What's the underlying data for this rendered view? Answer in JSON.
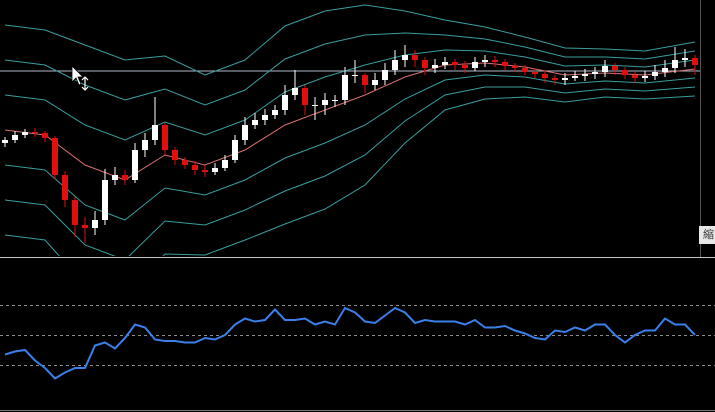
{
  "chart_data": [
    {
      "type": "candlestick",
      "x": [
        0,
        1,
        2,
        3,
        4,
        5,
        6,
        7,
        8,
        9,
        10,
        11,
        12,
        13,
        14,
        15,
        16,
        17,
        18,
        19,
        20,
        21,
        22,
        23,
        24,
        25,
        26,
        27,
        28,
        29,
        30,
        31,
        32,
        33,
        34,
        35,
        36,
        37,
        38,
        39,
        40,
        41,
        42,
        43,
        44,
        45,
        46,
        47,
        48,
        49,
        50,
        51,
        52,
        53,
        54,
        55,
        56,
        57,
        58,
        59,
        60,
        61,
        62,
        63,
        64,
        65,
        66,
        67,
        68,
        69
      ],
      "open": [
        112,
        115,
        120,
        123,
        122,
        117,
        80,
        55,
        30,
        27,
        35,
        75,
        80,
        75,
        105,
        115,
        130,
        105,
        95,
        90,
        85,
        83,
        87,
        95,
        115,
        130,
        135,
        140,
        145,
        160,
        167,
        150,
        150,
        155,
        155,
        180,
        180,
        170,
        175,
        185,
        195,
        200,
        195,
        187,
        190,
        193,
        190,
        187,
        193,
        195,
        193,
        189,
        187,
        183,
        181,
        177,
        175,
        177,
        179,
        181,
        183,
        189,
        185,
        180,
        177,
        179,
        183,
        187,
        195,
        197
      ],
      "high": [
        118,
        124,
        126,
        127,
        124,
        119,
        84,
        58,
        38,
        44,
        86,
        88,
        85,
        112,
        122,
        158,
        132,
        108,
        98,
        94,
        90,
        92,
        100,
        120,
        138,
        142,
        146,
        150,
        170,
        185,
        170,
        158,
        162,
        160,
        188,
        195,
        182,
        182,
        192,
        205,
        210,
        205,
        198,
        196,
        198,
        196,
        194,
        198,
        200,
        199,
        196,
        192,
        190,
        186,
        184,
        180,
        182,
        184,
        186,
        188,
        195,
        192,
        188,
        183,
        184,
        190,
        195,
        208,
        206,
        200
      ],
      "low": [
        108,
        112,
        117,
        118,
        113,
        76,
        48,
        18,
        12,
        20,
        30,
        70,
        70,
        72,
        98,
        110,
        100,
        90,
        86,
        80,
        78,
        80,
        84,
        92,
        110,
        126,
        130,
        136,
        140,
        155,
        140,
        135,
        140,
        148,
        150,
        172,
        162,
        165,
        170,
        180,
        188,
        188,
        180,
        182,
        186,
        185,
        182,
        184,
        188,
        188,
        185,
        183,
        180,
        177,
        172,
        170,
        170,
        174,
        174,
        176,
        178,
        180,
        176,
        172,
        173,
        175,
        178,
        182,
        188,
        180
      ],
      "close": [
        115,
        120,
        123,
        122,
        117,
        80,
        55,
        30,
        27,
        35,
        75,
        80,
        75,
        105,
        115,
        130,
        105,
        95,
        90,
        85,
        83,
        87,
        95,
        115,
        130,
        135,
        140,
        145,
        160,
        167,
        150,
        150,
        155,
        155,
        180,
        180,
        170,
        175,
        185,
        195,
        200,
        195,
        187,
        190,
        193,
        190,
        187,
        193,
        195,
        193,
        189,
        187,
        183,
        181,
        177,
        175,
        177,
        179,
        181,
        183,
        189,
        185,
        180,
        177,
        179,
        183,
        187,
        195,
        197,
        190
      ],
      "up_color": "#ffffff",
      "down_color": "#e01010",
      "xlim": [
        -0.5,
        69.5
      ],
      "ylim": [
        0,
        250
      ],
      "hline": 184,
      "hline_color": "#b0b8c8",
      "bands": {
        "x": [
          0,
          4,
          8,
          12,
          16,
          20,
          24,
          28,
          32,
          36,
          40,
          44,
          48,
          52,
          56,
          60,
          64,
          69
        ],
        "series": [
          {
            "color": "#3a9e9e",
            "values": [
              230,
              225,
              210,
              195,
              199,
              180,
              195,
              229,
              244,
              250,
              244,
              235,
              228,
              218,
              207,
              206,
              204,
              213
            ]
          },
          {
            "color": "#3a9e9e",
            "values": [
              195,
              190,
              170,
              155,
              166,
              150,
              165,
              196,
              211,
              220,
              222,
              220,
              216,
              208,
              198,
              198,
              196,
              204
            ]
          },
          {
            "color": "#3a9e9e",
            "values": [
              160,
              155,
              130,
              115,
              133,
              120,
              135,
              163,
              178,
              190,
              200,
              205,
              204,
              198,
              189,
              190,
              188,
              195
            ]
          },
          {
            "color": "#d87070",
            "values": [
              125,
              120,
              90,
              75,
              100,
              90,
              105,
              130,
              145,
              160,
              178,
              190,
              192,
              188,
              180,
              182,
              180,
              186
            ]
          },
          {
            "color": "#3a9e9e",
            "values": [
              90,
              85,
              50,
              35,
              67,
              60,
              75,
              97,
              112,
              130,
              156,
              175,
              180,
              178,
              171,
              174,
              172,
              177
            ]
          },
          {
            "color": "#3a9e9e",
            "values": [
              55,
              50,
              10,
              -5,
              34,
              30,
              45,
              64,
              79,
              100,
              134,
              160,
              168,
              168,
              162,
              166,
              164,
              168
            ]
          },
          {
            "color": "#3a9e9e",
            "values": [
              20,
              15,
              -30,
              -45,
              1,
              0,
              15,
              31,
              46,
              70,
              112,
              145,
              156,
              158,
              153,
              158,
              156,
              159
            ]
          }
        ]
      },
      "label": "縮"
    },
    {
      "type": "line",
      "x": [
        0,
        1,
        2,
        3,
        4,
        5,
        6,
        7,
        8,
        9,
        10,
        11,
        12,
        13,
        14,
        15,
        16,
        17,
        18,
        19,
        20,
        21,
        22,
        23,
        24,
        25,
        26,
        27,
        28,
        29,
        30,
        31,
        32,
        33,
        34,
        35,
        36,
        37,
        38,
        39,
        40,
        41,
        42,
        43,
        44,
        45,
        46,
        47,
        48,
        49,
        50,
        51,
        52,
        53,
        54,
        55,
        56,
        57,
        58,
        59,
        60,
        61,
        62,
        63,
        64,
        65,
        66,
        67,
        68,
        69
      ],
      "series": [
        {
          "color": "#3b7fe8",
          "values": [
            37,
            39,
            40,
            33,
            28,
            21,
            25,
            28,
            28,
            43,
            45,
            41,
            48,
            57,
            55,
            47,
            46,
            46,
            45,
            45,
            48,
            47,
            50,
            57,
            61,
            59,
            60,
            67,
            60,
            60,
            61,
            57,
            59,
            57,
            68,
            65,
            59,
            58,
            63,
            68,
            65,
            58,
            60,
            59,
            59,
            59,
            57,
            60,
            55,
            55,
            56,
            53,
            51,
            48,
            47,
            53,
            52,
            55,
            53,
            57,
            57,
            50,
            45,
            50,
            53,
            53,
            61,
            57,
            57,
            50
          ]
        }
      ],
      "xlim": [
        -0.5,
        69.5
      ],
      "ylim": [
        0,
        100
      ],
      "levels": [
        30,
        50,
        70
      ],
      "level_color": "#8a8a8a"
    }
  ]
}
